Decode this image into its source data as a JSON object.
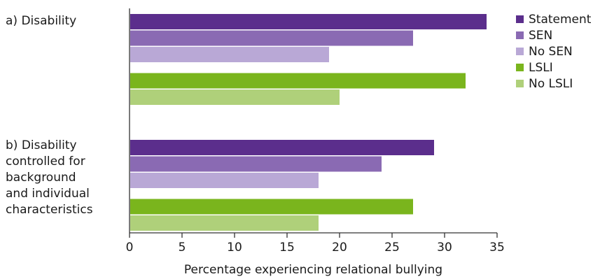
{
  "chart_data": {
    "type": "bar",
    "orientation": "horizontal",
    "xlabel": "Percentage experiencing relational bullying",
    "xlim": [
      0,
      35
    ],
    "xticks": [
      0,
      5,
      10,
      15,
      20,
      25,
      30,
      35
    ],
    "grid": false,
    "legend_position": "right",
    "series": [
      {
        "name": "Statement",
        "color": "#5b2e8c"
      },
      {
        "name": "SEN",
        "color": "#8a6ab3"
      },
      {
        "name": "No SEN",
        "color": "#b9a8d6"
      },
      {
        "name": "LSLI",
        "color": "#7ab51d"
      },
      {
        "name": "No LSLI",
        "color": "#afd07a"
      }
    ],
    "groups": [
      {
        "label": [
          "a) Disability"
        ],
        "values": {
          "Statement": 34,
          "SEN": 27,
          "No SEN": 19,
          "LSLI": 32,
          "No LSLI": 20
        }
      },
      {
        "label": [
          "b) Disability",
          "controlled for",
          "background",
          "and individual",
          "characteristics"
        ],
        "values": {
          "Statement": 29,
          "SEN": 24,
          "No SEN": 18,
          "LSLI": 27,
          "No LSLI": 18
        }
      }
    ]
  }
}
